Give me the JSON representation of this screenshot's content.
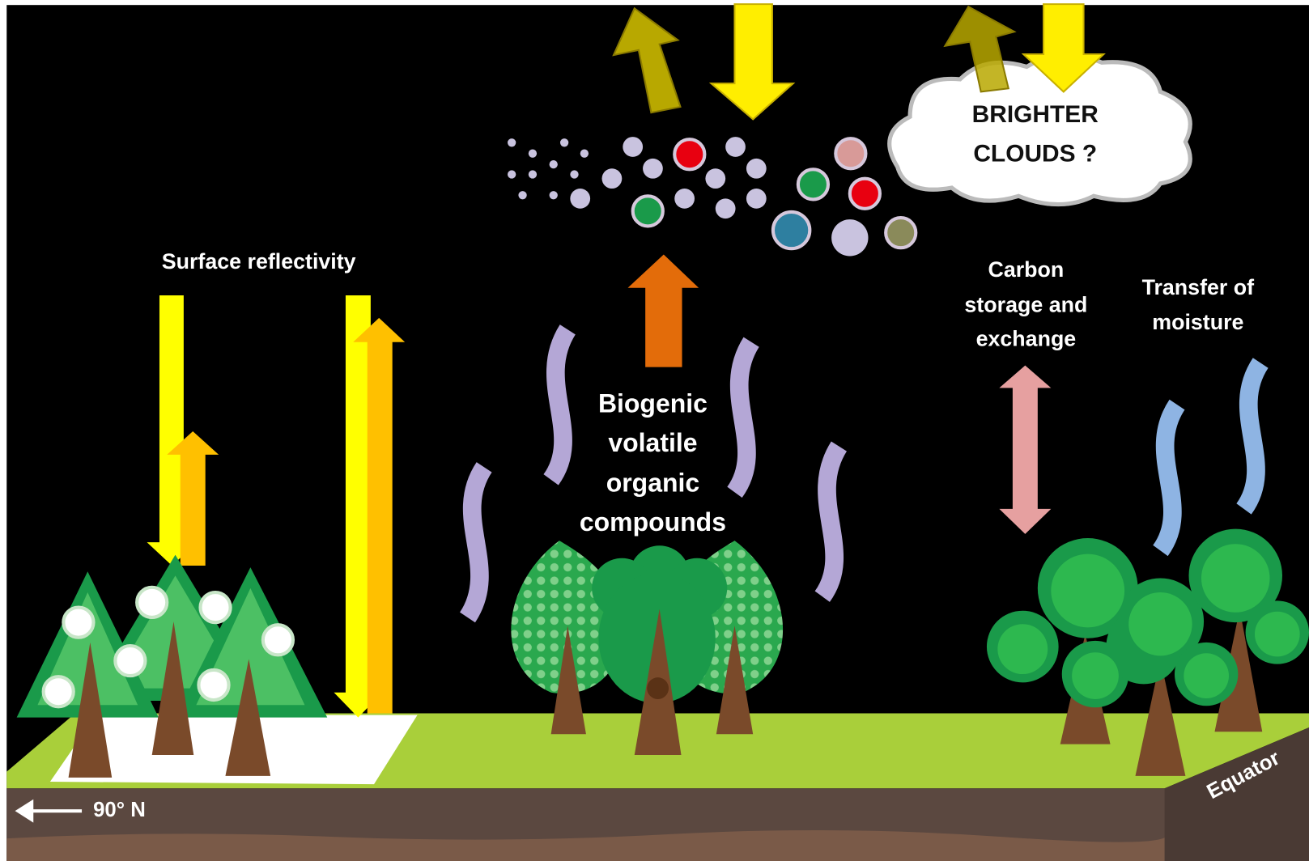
{
  "labels": {
    "surface_reflectivity": "Surface reflectivity",
    "clouds": [
      "BRIGHTER",
      "CLOUDS ?"
    ],
    "bvoc": [
      "Biogenic",
      "volatile",
      "organic",
      "compounds"
    ],
    "carbon": [
      "Carbon",
      "storage and",
      "exchange"
    ],
    "moisture": [
      "Transfer of",
      "moisture"
    ],
    "latitude": "90° N",
    "equator": "Equator"
  }
}
